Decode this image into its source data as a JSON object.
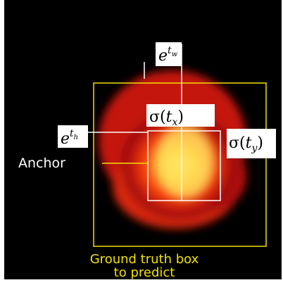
{
  "labels": {
    "width": {
      "base": "e",
      "exp": "t",
      "exp_sub": "w"
    },
    "tx": {
      "open": "σ(",
      "var": "t",
      "sub": "x",
      "close": ")"
    },
    "height": {
      "base": "e",
      "exp": "t",
      "exp_sub": "h"
    },
    "ty": {
      "open": "σ(",
      "var": "t",
      "sub": "y",
      "close": ")"
    },
    "anchor": "Anchor",
    "ground_truth": [
      "Ground truth box",
      "to predict"
    ]
  }
}
